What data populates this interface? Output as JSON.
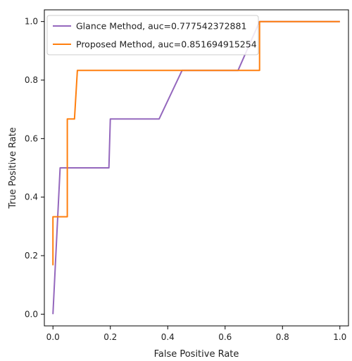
{
  "chart_data": {
    "type": "line",
    "title": "",
    "xlabel": "False Positive Rate",
    "ylabel": "True Positive Rate",
    "xlim": [
      -0.03,
      1.03
    ],
    "ylim": [
      -0.04,
      1.04
    ],
    "xticks": [
      "0.0",
      "0.2",
      "0.4",
      "0.6",
      "0.8",
      "1.0"
    ],
    "yticks": [
      "0.0",
      "0.2",
      "0.4",
      "0.6",
      "0.8",
      "1.0"
    ],
    "grid": false,
    "legend_position": "top-left",
    "series": [
      {
        "name": "Glance Method, auc=0.777542372881",
        "color": "#9467bd",
        "x": [
          0.0,
          0.025,
          0.195,
          0.2,
          0.37,
          0.45,
          0.645,
          0.72,
          1.0
        ],
        "y": [
          0.0,
          0.5,
          0.5,
          0.667,
          0.667,
          0.833,
          0.833,
          1.0,
          1.0
        ]
      },
      {
        "name": "Proposed Method, auc=0.851694915254",
        "color": "#ff7f0e",
        "x": [
          0.0,
          0.0,
          0.0,
          0.035,
          0.05,
          0.05,
          0.075,
          0.085,
          0.72,
          0.72,
          1.0
        ],
        "y": [
          0.167,
          0.333,
          0.333,
          0.333,
          0.333,
          0.667,
          0.667,
          0.833,
          0.833,
          1.0,
          1.0
        ]
      }
    ]
  }
}
